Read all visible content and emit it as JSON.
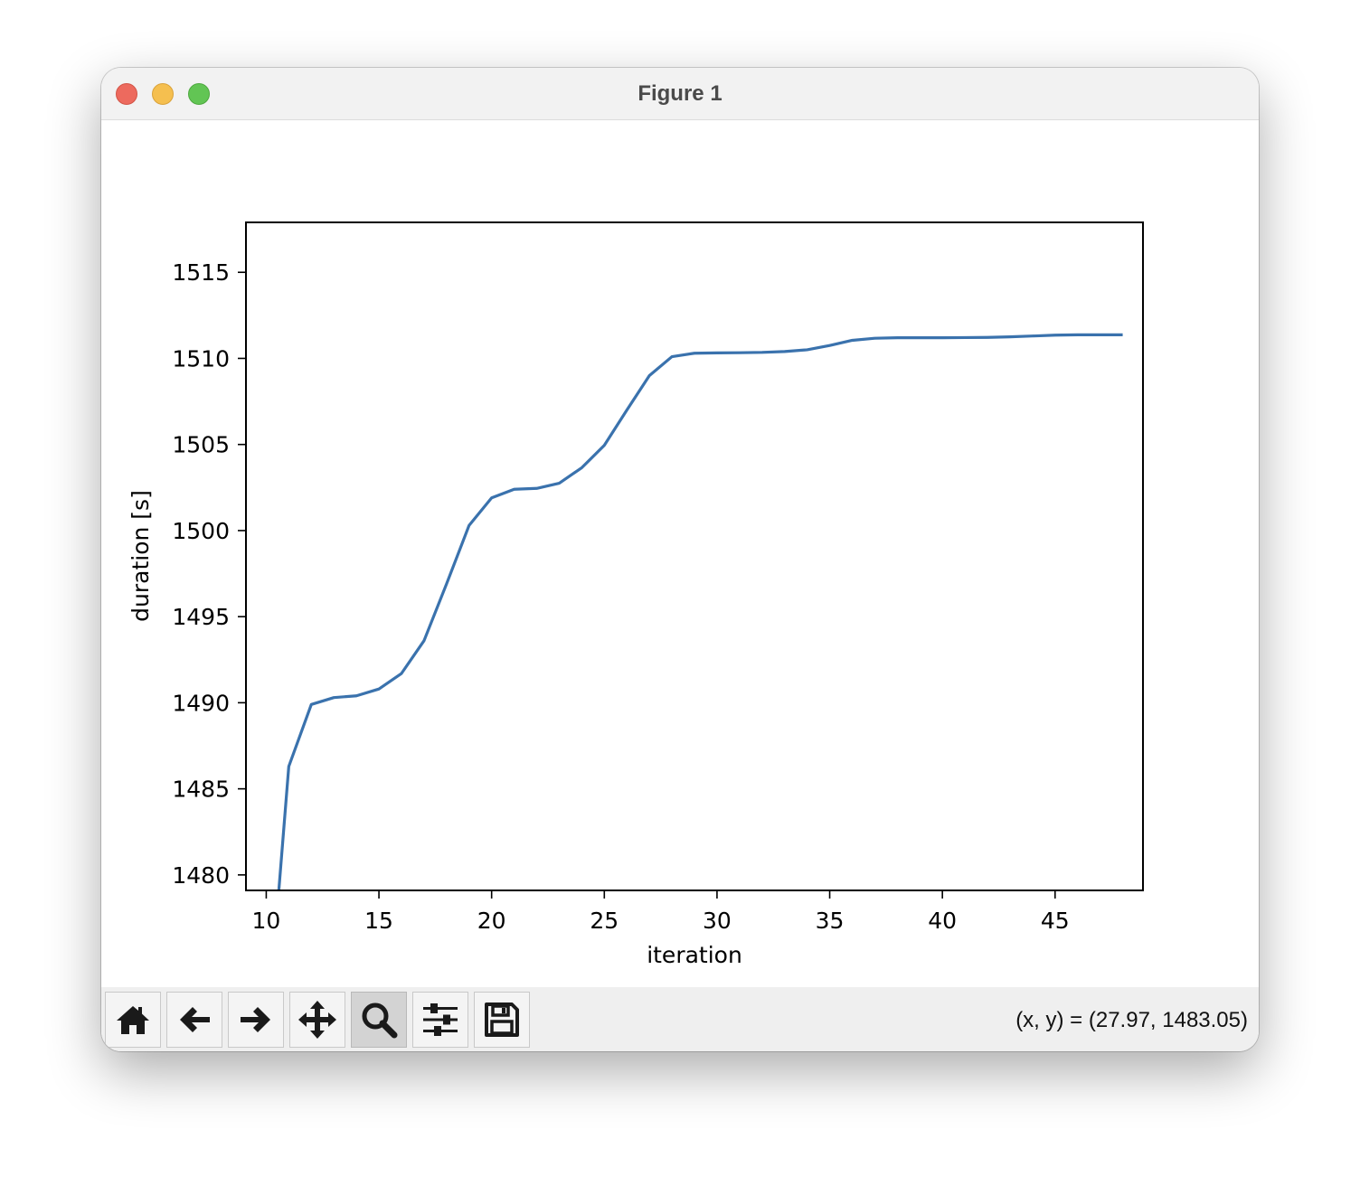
{
  "window": {
    "title": "Figure 1"
  },
  "toolbar": {
    "buttons": [
      {
        "name": "home-button",
        "icon": "home-icon"
      },
      {
        "name": "back-button",
        "icon": "arrow-left-icon"
      },
      {
        "name": "forward-button",
        "icon": "arrow-right-icon"
      },
      {
        "name": "pan-button",
        "icon": "move-icon"
      },
      {
        "name": "zoom-button",
        "icon": "magnifier-icon",
        "active": true
      },
      {
        "name": "configure-subplots-button",
        "icon": "sliders-icon"
      },
      {
        "name": "save-button",
        "icon": "floppy-disk-icon"
      }
    ],
    "coordinates": "(x, y) = (27.97, 1483.05)"
  },
  "chart_data": {
    "type": "line",
    "title": "",
    "xlabel": "iteration",
    "ylabel": "duration [s]",
    "xlim": [
      9.1,
      48.9
    ],
    "ylim": [
      1479.1,
      1517.9
    ],
    "xticks": [
      10,
      15,
      20,
      25,
      30,
      35,
      40,
      45
    ],
    "yticks": [
      1480,
      1485,
      1490,
      1495,
      1500,
      1505,
      1510,
      1515
    ],
    "line_color": "#3a72ad",
    "series": [
      {
        "x": [
          10,
          11,
          12,
          13,
          14,
          15,
          16,
          17,
          18,
          19,
          20,
          21,
          22,
          23,
          24,
          25,
          26,
          27,
          28,
          29,
          30,
          31,
          32,
          33,
          34,
          35,
          36,
          37,
          38,
          39,
          40,
          41,
          42,
          43,
          44,
          45,
          46,
          47,
          48
        ],
        "values": [
          1470.0,
          1486.3,
          1489.9,
          1490.3,
          1490.4,
          1490.8,
          1491.7,
          1493.6,
          1496.9,
          1500.3,
          1501.9,
          1502.4,
          1502.45,
          1502.75,
          1503.65,
          1504.95,
          1507.0,
          1509.0,
          1510.1,
          1510.3,
          1510.32,
          1510.33,
          1510.35,
          1510.4,
          1510.5,
          1510.75,
          1511.05,
          1511.17,
          1511.2,
          1511.2,
          1511.2,
          1511.21,
          1511.22,
          1511.25,
          1511.3,
          1511.35,
          1511.37,
          1511.37,
          1511.37
        ]
      }
    ]
  }
}
